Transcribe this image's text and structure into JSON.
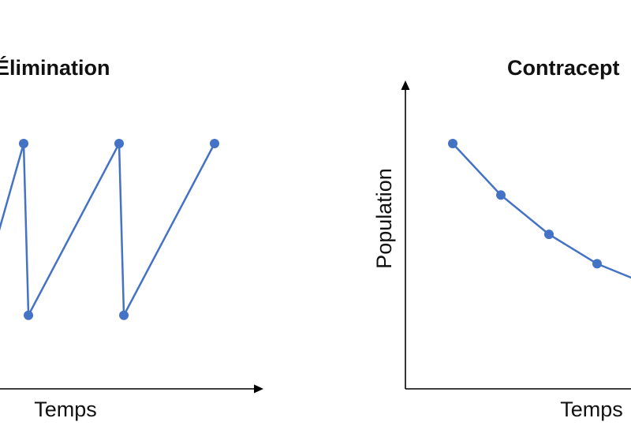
{
  "colors": {
    "series": "#4472C4",
    "axis": "#000000",
    "text": "#111111"
  },
  "chart_data": [
    {
      "type": "line",
      "title": "Élimination",
      "xlabel": "Temps",
      "ylabel": "",
      "grid": false,
      "series": [
        {
          "x": [
            -0.4,
            0,
            0.05,
            1,
            1.05,
            2
          ],
          "y": [
            0.45,
            1,
            0.3,
            1,
            0.3,
            1
          ]
        }
      ]
    },
    {
      "type": "line",
      "title": "Contracept",
      "xlabel": "Temps",
      "ylabel": "Population",
      "grid": false,
      "series": [
        {
          "x": [
            0,
            1,
            2,
            3,
            4
          ],
          "y": [
            1,
            0.79,
            0.63,
            0.51,
            0.43
          ]
        }
      ]
    }
  ]
}
